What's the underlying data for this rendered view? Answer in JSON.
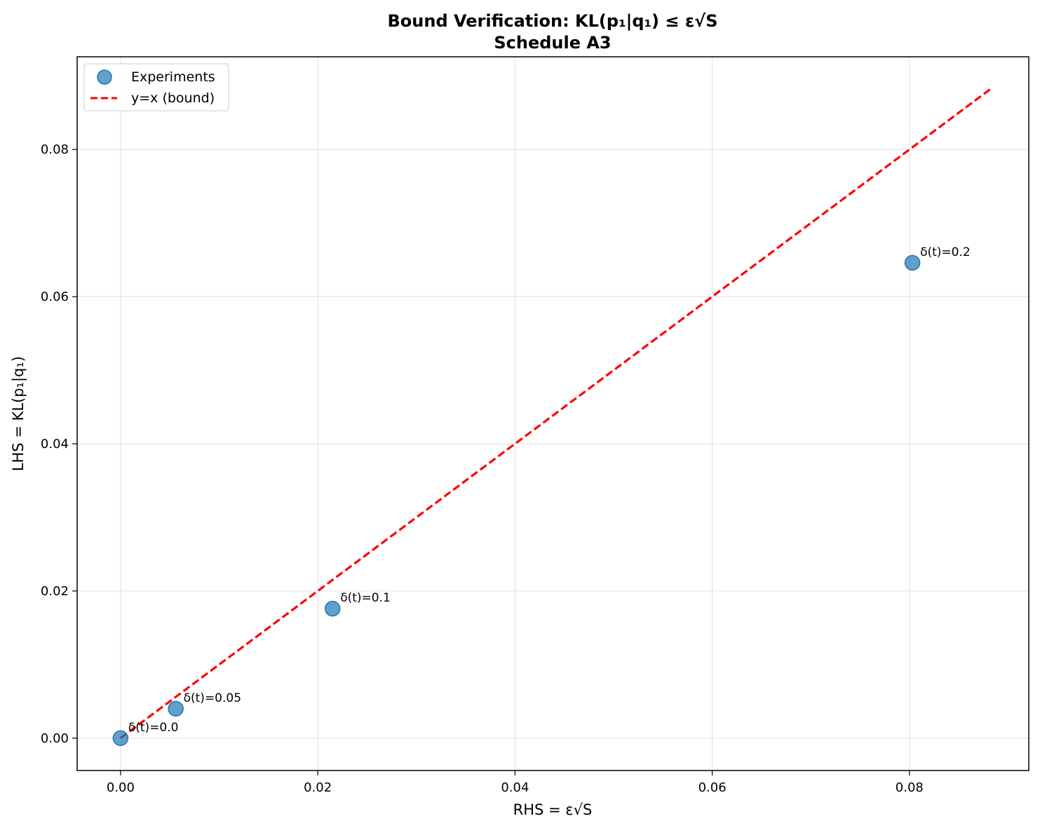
{
  "chart_data": {
    "type": "scatter",
    "title": "Bound Verification: KL(p₁|q₁) ≤ ε√S",
    "subtitle": "Schedule A3",
    "xlabel": "RHS = ε√S",
    "ylabel": "LHS = KL(p₁|q₁)",
    "xlim": [
      -0.0044,
      0.0921
    ],
    "ylim": [
      -0.0044,
      0.0926
    ],
    "xticks": [
      0.0,
      0.02,
      0.04,
      0.06,
      0.08
    ],
    "xtick_labels": [
      "0.00",
      "0.02",
      "0.04",
      "0.06",
      "0.08"
    ],
    "yticks": [
      0.0,
      0.02,
      0.04,
      0.06,
      0.08
    ],
    "ytick_labels": [
      "0.00",
      "0.02",
      "0.04",
      "0.06",
      "0.08"
    ],
    "grid": true,
    "legend_position": "top-left",
    "series": [
      {
        "name": "Experiments",
        "kind": "scatter",
        "color": "#1f77b4",
        "points": [
          {
            "x": 0.0,
            "y": 0.0,
            "label": "δ(t)=0.0"
          },
          {
            "x": 0.0056,
            "y": 0.004,
            "label": "δ(t)=0.05"
          },
          {
            "x": 0.0215,
            "y": 0.0176,
            "label": "δ(t)=0.1"
          },
          {
            "x": 0.0803,
            "y": 0.0646,
            "label": "δ(t)=0.2"
          }
        ]
      },
      {
        "name": "y=x (bound)",
        "kind": "line",
        "style": "dashed",
        "color": "#ff0000",
        "x": [
          0.0,
          0.0883
        ],
        "y": [
          0.0,
          0.0883
        ]
      }
    ]
  }
}
